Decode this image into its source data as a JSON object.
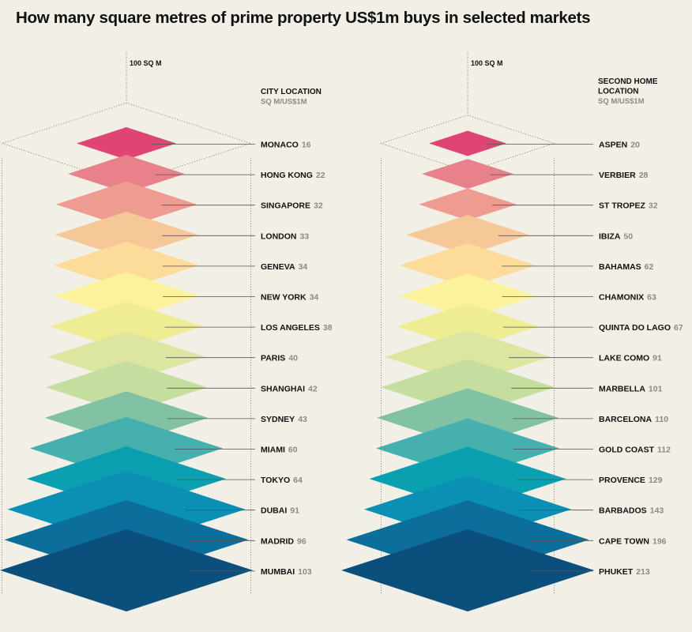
{
  "title": "How many square metres of prime property US$1m buys in selected markets",
  "reference_label": "100 SQ M",
  "colors": [
    "#de4575",
    "#e8818a",
    "#ee9c92",
    "#f6c898",
    "#fcdc98",
    "#fcf29c",
    "#eeed94",
    "#dde6a0",
    "#c3de9e",
    "#80c2a3",
    "#45b0ae",
    "#0aa0b0",
    "#0b8fb4",
    "#0c6e9b",
    "#0b4f7d"
  ],
  "chart_data": [
    {
      "type": "isometric-stack",
      "header_lines": [
        "CITY LOCATION"
      ],
      "unit_label": "SQ M/US$1M",
      "categories": [
        "MONACO",
        "HONG KONG",
        "SINGAPORE",
        "LONDON",
        "GENEVA",
        "NEW YORK",
        "LOS ANGELES",
        "PARIS",
        "SHANGHAI",
        "SYDNEY",
        "MIAMI",
        "TOKYO",
        "DUBAI",
        "MADRID",
        "MUMBAI"
      ],
      "values": [
        16,
        22,
        32,
        33,
        34,
        34,
        38,
        40,
        42,
        43,
        60,
        64,
        91,
        96,
        103
      ],
      "reference_value": 100
    },
    {
      "type": "isometric-stack",
      "header_lines": [
        "SECOND HOME",
        "LOCATION"
      ],
      "unit_label": "SQ M/US$1M",
      "categories": [
        "ASPEN",
        "VERBIER",
        "ST TROPEZ",
        "IBIZA",
        "BAHAMAS",
        "CHAMONIX",
        "QUINTA DO LAGO",
        "LAKE COMO",
        "MARBELLA",
        "BARCELONA",
        "GOLD COAST",
        "PROVENCE",
        "BARBADOS",
        "CAPE TOWN",
        "PHUKET"
      ],
      "values": [
        20,
        28,
        32,
        50,
        62,
        63,
        67,
        91,
        101,
        110,
        112,
        129,
        143,
        196,
        213
      ],
      "reference_value": 100
    }
  ]
}
